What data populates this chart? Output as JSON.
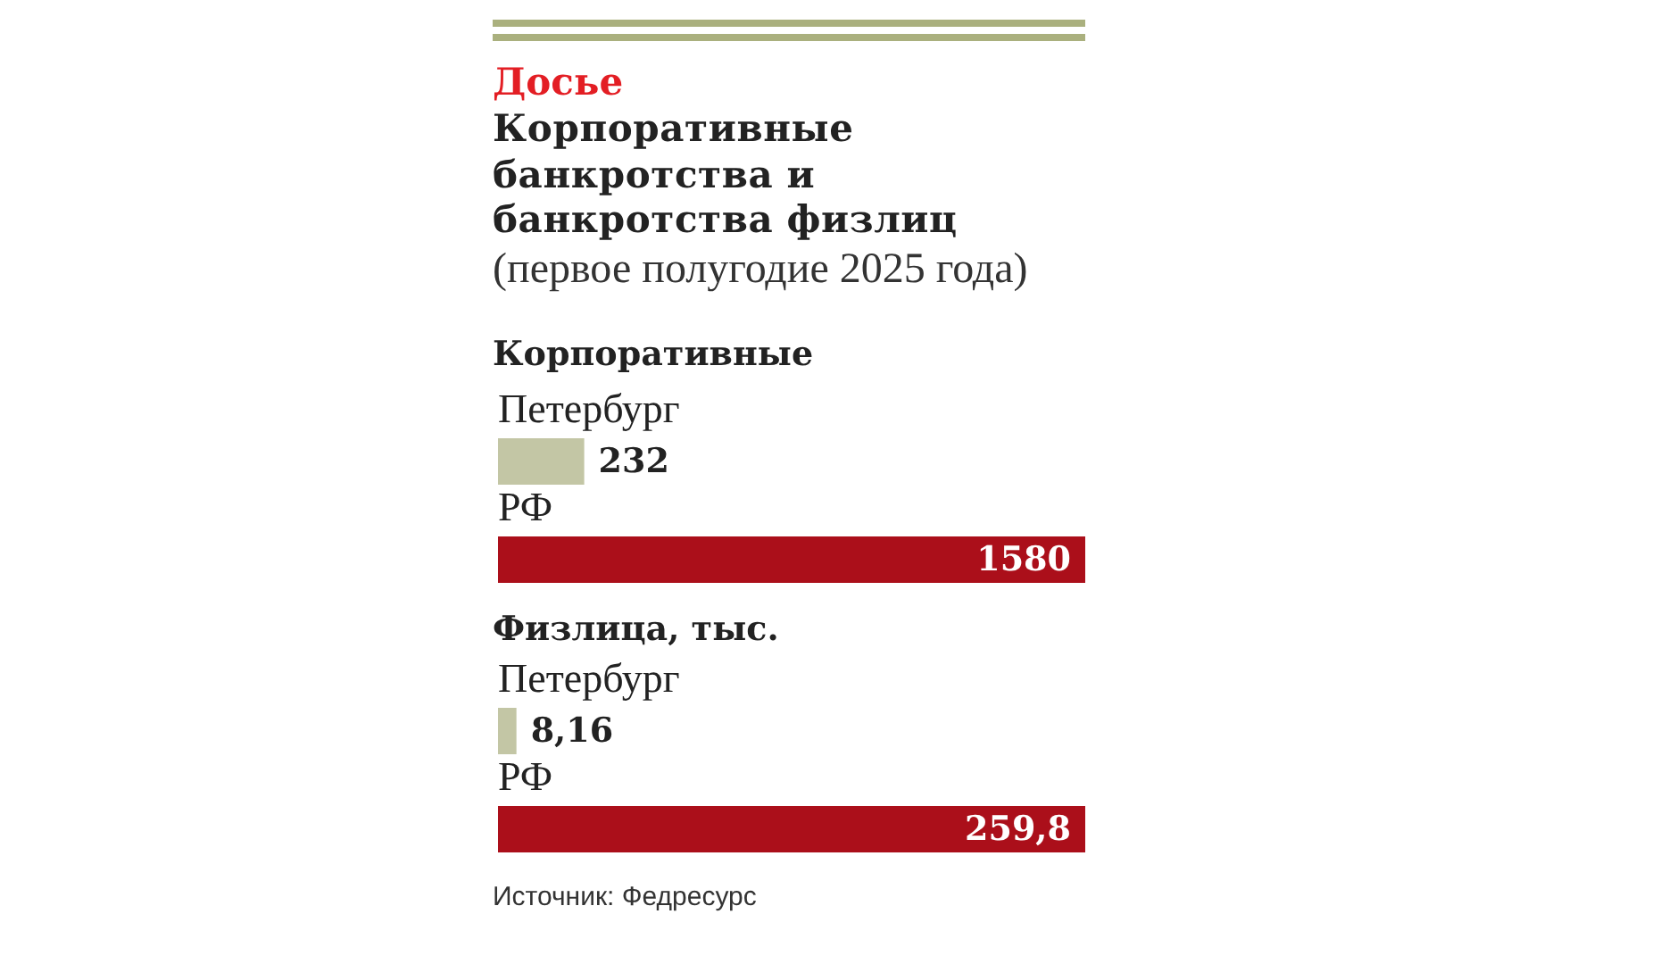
{
  "chart_data": [
    {
      "type": "other",
      "title": "Корпоративные банкротства и банкротства физлиц",
      "subtitle": "(первое полугодие 2025 года)",
      "annotations": [
        "Досье"
      ]
    },
    {
      "type": "bar",
      "orientation": "horizontal",
      "title": "Корпоративные",
      "categories": [
        "Петербург",
        "РФ"
      ],
      "values": [
        232,
        1580
      ],
      "colors": [
        "#c3c6a5",
        "#ab0f1a"
      ],
      "value_labels": [
        "232",
        "1580"
      ]
    },
    {
      "type": "bar",
      "orientation": "horizontal",
      "title": "Физлица, тыс.",
      "categories": [
        "Петербург",
        "РФ"
      ],
      "values": [
        8.16,
        259.8
      ],
      "colors": [
        "#c3c6a5",
        "#ab0f1a"
      ],
      "value_labels": [
        "8,16",
        "259,8"
      ],
      "annotations": [
        "Источник: Федресурс"
      ]
    }
  ]
}
